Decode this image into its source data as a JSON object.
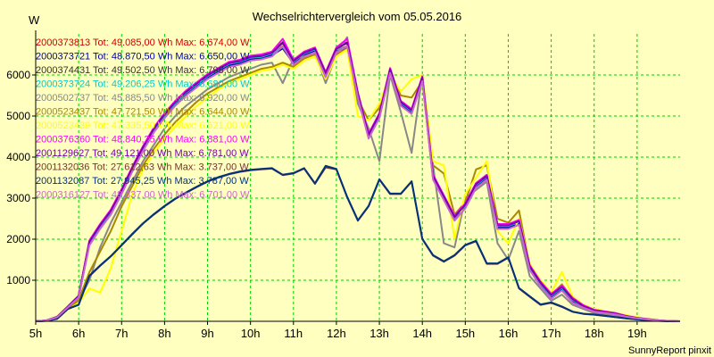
{
  "chart_data": {
    "type": "line",
    "title": "Wechselrichtervergleich vom 05.05.2016",
    "ylabel": "W",
    "xlabel": "",
    "footer": "SunnyReport pinxit",
    "grid": true,
    "legend_position": "top-left",
    "xlim": [
      5,
      20
    ],
    "ylim": [
      0,
      7000
    ],
    "x_ticks": [
      {
        "v": 5,
        "label": "5h"
      },
      {
        "v": 6,
        "label": "6h"
      },
      {
        "v": 7,
        "label": "7h"
      },
      {
        "v": 8,
        "label": "8h"
      },
      {
        "v": 9,
        "label": "9h"
      },
      {
        "v": 10,
        "label": "10h"
      },
      {
        "v": 11,
        "label": "11h"
      },
      {
        "v": 12,
        "label": "12h"
      },
      {
        "v": 13,
        "label": "13h"
      },
      {
        "v": 14,
        "label": "14h"
      },
      {
        "v": 15,
        "label": "15h"
      },
      {
        "v": 16,
        "label": "16h"
      },
      {
        "v": 17,
        "label": "17h"
      },
      {
        "v": 18,
        "label": "18h"
      },
      {
        "v": 19,
        "label": "19h"
      }
    ],
    "y_ticks": [
      {
        "v": 1000,
        "label": "1000"
      },
      {
        "v": 2000,
        "label": "2000"
      },
      {
        "v": 3000,
        "label": "3000"
      },
      {
        "v": 4000,
        "label": "4000"
      },
      {
        "v": 5000,
        "label": "5000"
      },
      {
        "v": 6000,
        "label": "6000"
      }
    ],
    "x": [
      5.0,
      5.25,
      5.5,
      5.75,
      6.0,
      6.25,
      6.5,
      6.75,
      7.0,
      7.25,
      7.5,
      7.75,
      8.0,
      8.25,
      8.5,
      8.75,
      9.0,
      9.25,
      9.5,
      9.75,
      10.0,
      10.25,
      10.5,
      10.75,
      11.0,
      11.25,
      11.5,
      11.75,
      12.0,
      12.25,
      12.5,
      12.75,
      13.0,
      13.25,
      13.5,
      13.75,
      14.0,
      14.25,
      14.5,
      14.75,
      15.0,
      15.25,
      15.5,
      15.75,
      16.0,
      16.25,
      16.5,
      16.75,
      17.0,
      17.25,
      17.5,
      17.75,
      18.0,
      18.25,
      18.5,
      18.75,
      19.0,
      19.25,
      19.5,
      19.75,
      20.0
    ],
    "series": [
      {
        "name": "2000373813",
        "legend": "2000373813 Tot: 49.085,00 Wh Max: 6.674,00 W",
        "color": "#cc0000",
        "values": [
          0,
          20,
          100,
          350,
          600,
          1900,
          2300,
          2650,
          3150,
          3700,
          4200,
          4650,
          5000,
          5300,
          5550,
          5750,
          5950,
          6100,
          6250,
          6300,
          6400,
          6420,
          6500,
          6700,
          6300,
          6500,
          6600,
          6000,
          6600,
          6700,
          5500,
          4500,
          5000,
          6100,
          5300,
          5100,
          5900,
          3500,
          3000,
          2500,
          2800,
          3300,
          3500,
          2300,
          2300,
          2400,
          1300,
          900,
          600,
          800,
          500,
          350,
          250,
          220,
          180,
          120,
          80,
          50,
          20,
          5,
          0
        ]
      },
      {
        "name": "2000373721",
        "legend": "2000373721 Tot: 48.870,50 Wh Max: 6.650,00 W",
        "color": "#0000aa",
        "values": [
          0,
          20,
          100,
          340,
          590,
          1880,
          2280,
          2620,
          3130,
          3680,
          4180,
          4620,
          4980,
          5280,
          5520,
          5720,
          5930,
          6080,
          6230,
          6280,
          6380,
          6400,
          6480,
          6650,
          6280,
          6480,
          6580,
          5980,
          6580,
          6650,
          5450,
          4480,
          4980,
          6080,
          5280,
          5080,
          5880,
          3480,
          2980,
          2480,
          2780,
          3280,
          3480,
          2280,
          2280,
          2380,
          1280,
          880,
          580,
          780,
          480,
          340,
          240,
          210,
          170,
          110,
          75,
          45,
          20,
          5,
          0
        ]
      },
      {
        "name": "2000374431",
        "legend": "2000374431 Tot: 49.502,50 Wh Max: 6.798,00 W",
        "color": "#333333",
        "values": [
          0,
          20,
          110,
          360,
          620,
          1950,
          2350,
          2700,
          3200,
          3750,
          4250,
          4700,
          5050,
          5350,
          5600,
          5800,
          6000,
          6150,
          6300,
          6350,
          6450,
          6480,
          6550,
          6798,
          6350,
          6550,
          6650,
          6050,
          6650,
          6798,
          5550,
          4550,
          5050,
          6150,
          5350,
          5150,
          5950,
          3550,
          3050,
          2550,
          2850,
          3350,
          3550,
          2350,
          2350,
          2450,
          1350,
          950,
          650,
          850,
          550,
          380,
          270,
          230,
          190,
          130,
          85,
          55,
          25,
          5,
          0
        ]
      },
      {
        "name": "2000373724",
        "legend": "2000373724 Tot: 49.206,25 Wh Max: 6.680,00 W",
        "color": "#00cccc",
        "values": [
          0,
          20,
          105,
          355,
          610,
          1920,
          2320,
          2670,
          3170,
          3720,
          4220,
          4670,
          5020,
          5320,
          5570,
          5770,
          5970,
          6120,
          6270,
          6320,
          6420,
          6440,
          6520,
          6680,
          6320,
          6520,
          6620,
          6020,
          6620,
          6680,
          5520,
          4520,
          5020,
          6120,
          5320,
          5120,
          5920,
          3520,
          3020,
          2520,
          2820,
          3320,
          3520,
          2320,
          2320,
          2420,
          1320,
          920,
          620,
          820,
          520,
          360,
          260,
          220,
          180,
          120,
          80,
          50,
          20,
          5,
          0
        ]
      },
      {
        "name": "2000502737",
        "legend": "2000502737 Tot: 45.885,50 Wh Max: 6.920,00 W",
        "color": "#888888",
        "values": [
          0,
          15,
          90,
          300,
          500,
          1000,
          1800,
          2400,
          2900,
          3400,
          3900,
          4300,
          4700,
          5000,
          5250,
          5450,
          5650,
          5800,
          5950,
          6050,
          6150,
          6250,
          6300,
          5800,
          6400,
          6450,
          6550,
          5800,
          6500,
          6920,
          5300,
          4700,
          3900,
          6000,
          5100,
          4100,
          6000,
          3800,
          1900,
          1800,
          3000,
          3200,
          3400,
          1900,
          1500,
          2200,
          1100,
          800,
          500,
          650,
          400,
          300,
          200,
          180,
          150,
          100,
          70,
          40,
          15,
          5,
          0
        ]
      },
      {
        "name": "2000523437",
        "legend": "2000523437 Tot: 47.721,50 Wh Max: 6.644,00 W",
        "color": "#aa8800",
        "values": [
          0,
          15,
          90,
          310,
          520,
          1200,
          1700,
          2200,
          2800,
          3300,
          3800,
          4200,
          4550,
          4850,
          5100,
          5350,
          5550,
          5700,
          5850,
          5950,
          6050,
          6150,
          6200,
          6300,
          6200,
          6400,
          6500,
          5900,
          6500,
          6644,
          5400,
          4900,
          5200,
          6050,
          5500,
          5450,
          5850,
          3800,
          3600,
          2600,
          2900,
          3700,
          3800,
          2500,
          2400,
          2700,
          1350,
          950,
          650,
          900,
          550,
          400,
          280,
          240,
          200,
          140,
          90,
          55,
          25,
          5,
          0
        ]
      },
      {
        "name": "2000523439",
        "legend": "2000523439 Tot: 47.335,50 Wh Max: 6.621,00 W",
        "color": "#ffff00",
        "values": [
          0,
          15,
          80,
          280,
          450,
          800,
          700,
          1300,
          2200,
          3100,
          3700,
          4100,
          4450,
          4750,
          5000,
          5250,
          5450,
          5650,
          5800,
          5900,
          6000,
          6100,
          6150,
          6250,
          6150,
          6350,
          6450,
          5900,
          6450,
          6621,
          5000,
          4900,
          5300,
          6000,
          5600,
          5900,
          6000,
          3900,
          3800,
          2000,
          3100,
          3500,
          3900,
          2200,
          1900,
          2500,
          1400,
          1000,
          700,
          1200,
          600,
          400,
          300,
          250,
          200,
          150,
          100,
          60,
          25,
          5,
          0
        ]
      },
      {
        "name": "2000376360",
        "legend": "2000376360 Tot: 48.840,25 Wh Max: 6.881,00 W",
        "color": "#ff00ff",
        "values": [
          0,
          20,
          110,
          360,
          620,
          1970,
          2370,
          2720,
          3220,
          3770,
          4270,
          4720,
          5070,
          5370,
          5620,
          5820,
          6020,
          6170,
          6320,
          6370,
          6470,
          6500,
          6570,
          6881,
          6370,
          6570,
          6670,
          6070,
          6670,
          6881,
          5570,
          4570,
          5070,
          6170,
          5370,
          5170,
          5970,
          3570,
          3070,
          2570,
          2870,
          3370,
          3570,
          2370,
          2370,
          2470,
          1370,
          970,
          670,
          870,
          570,
          390,
          280,
          240,
          200,
          130,
          85,
          55,
          25,
          5,
          0
        ]
      },
      {
        "name": "2001129627",
        "legend": "2001129627 Tot: 49.121,00 Wh Max: 6.781,00 W",
        "color": "#7700aa",
        "values": [
          0,
          20,
          108,
          358,
          615,
          1940,
          2340,
          2690,
          3190,
          3740,
          4240,
          4690,
          5040,
          5340,
          5590,
          5790,
          5990,
          6140,
          6290,
          6340,
          6440,
          6460,
          6540,
          6781,
          6340,
          6540,
          6640,
          6040,
          6640,
          6781,
          5540,
          4540,
          5040,
          6140,
          5340,
          5140,
          5940,
          3540,
          3040,
          2540,
          2840,
          3340,
          3540,
          2340,
          2340,
          2440,
          1340,
          940,
          640,
          840,
          540,
          370,
          265,
          225,
          185,
          125,
          82,
          52,
          22,
          5,
          0
        ]
      },
      {
        "name": "2001132036",
        "legend": "2001132036 Tot: 27.612,63 Wh Max: 3.737,00 W",
        "color": "#773333",
        "values": [
          0,
          10,
          60,
          300,
          400,
          1100,
          1350,
          1580,
          1850,
          2120,
          2380,
          2600,
          2800,
          2980,
          3130,
          3270,
          3400,
          3500,
          3580,
          3640,
          3680,
          3700,
          3720,
          3560,
          3600,
          3720,
          3350,
          3750,
          3700,
          3020,
          2450,
          2800,
          3450,
          3100,
          3100,
          3400,
          2000,
          1600,
          1450,
          1600,
          1850,
          1950,
          1400,
          1400,
          1550,
          800,
          600,
          400,
          450,
          350,
          230,
          180,
          160,
          130,
          100,
          70,
          45,
          25,
          10,
          3,
          0
        ]
      },
      {
        "name": "2001132087",
        "legend": "2001132087 Tot: 27.945,25 Wh Max: 3.787,00 W",
        "color": "#00337f",
        "values": [
          0,
          10,
          62,
          305,
          405,
          1110,
          1360,
          1590,
          1860,
          2130,
          2390,
          2610,
          2810,
          2990,
          3140,
          3280,
          3410,
          3510,
          3590,
          3650,
          3690,
          3710,
          3730,
          3570,
          3610,
          3730,
          3360,
          3787,
          3710,
          3030,
          2460,
          2810,
          3460,
          3110,
          3110,
          3410,
          2010,
          1610,
          1460,
          1610,
          1860,
          1960,
          1410,
          1410,
          1560,
          810,
          610,
          410,
          460,
          360,
          235,
          185,
          165,
          135,
          102,
          72,
          46,
          26,
          10,
          3,
          0
        ]
      },
      {
        "name": "2000316127",
        "legend": "2000316127 Tot: 48.337,00 Wh Max: 6.701,00 W",
        "color": "#cc66cc",
        "values": [
          0,
          18,
          100,
          340,
          580,
          1850,
          2250,
          2600,
          3100,
          3650,
          4150,
          4600,
          4950,
          5250,
          5500,
          5700,
          5900,
          6050,
          6200,
          6250,
          6350,
          6380,
          6450,
          6701,
          6250,
          6450,
          6550,
          5950,
          6550,
          6701,
          5450,
          4450,
          4950,
          6050,
          5250,
          5050,
          5850,
          3450,
          2950,
          2450,
          2750,
          3250,
          3450,
          2250,
          2250,
          2350,
          1250,
          850,
          550,
          750,
          450,
          330,
          235,
          205,
          165,
          110,
          75,
          45,
          20,
          5,
          0
        ]
      }
    ]
  }
}
